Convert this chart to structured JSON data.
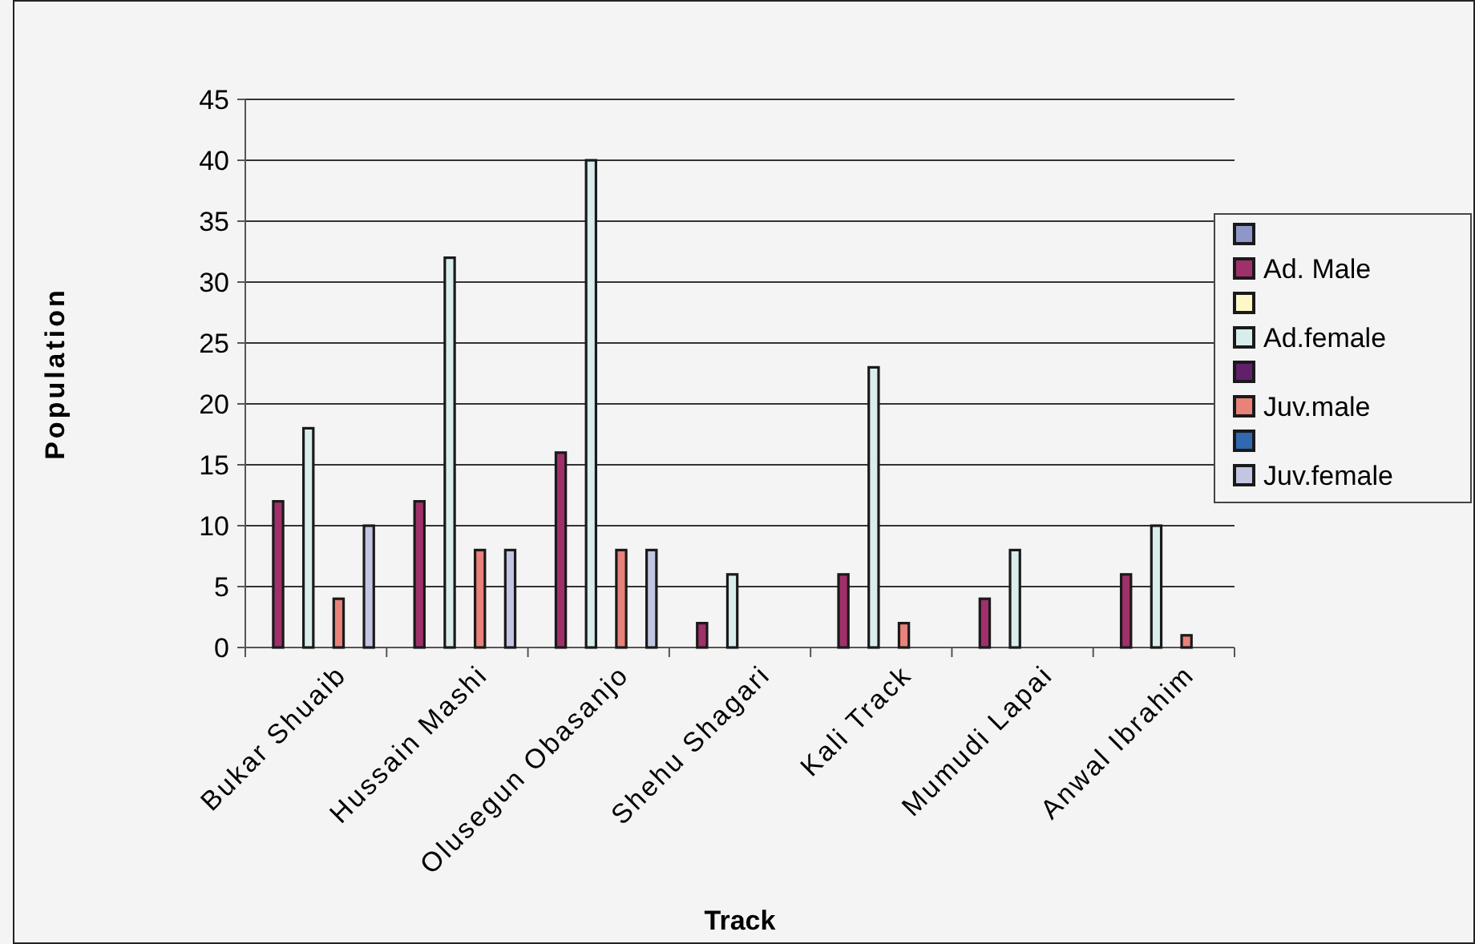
{
  "chart_data": {
    "type": "bar",
    "xlabel": "Track",
    "ylabel": "Population",
    "categories": [
      "Bukar Shuaib",
      "Hussain Mashi",
      "Olusegun Obasanjo",
      "Shehu Shagari",
      "Kali Track",
      "Mumudi Lapai",
      "Anwal Ibrahim"
    ],
    "series": [
      {
        "color": "#8e97c9",
        "values": [
          null,
          null,
          null,
          null,
          null,
          null,
          null
        ]
      },
      {
        "name": "Ad. Male",
        "color": "#a0306a",
        "values": [
          12,
          12,
          16,
          2,
          6,
          4,
          6
        ]
      },
      {
        "color": "#fdf8c8",
        "values": [
          null,
          null,
          null,
          null,
          null,
          null,
          null
        ]
      },
      {
        "name": "Ad.female",
        "color": "#d9eded",
        "values": [
          18,
          32,
          40,
          6,
          23,
          8,
          10
        ]
      },
      {
        "color": "#621f6a",
        "values": [
          null,
          null,
          null,
          null,
          null,
          null,
          null
        ]
      },
      {
        "name": "Juv.male",
        "color": "#e8827a",
        "values": [
          4,
          8,
          8,
          null,
          2,
          null,
          1
        ]
      },
      {
        "color": "#3069b0",
        "values": [
          null,
          null,
          null,
          null,
          null,
          null,
          null
        ]
      },
      {
        "name": "Juv.female",
        "color": "#c3c6e2",
        "values": [
          10,
          8,
          8,
          null,
          null,
          null,
          null
        ]
      }
    ],
    "ylim": [
      0,
      45
    ],
    "yticks": [
      0,
      5,
      10,
      15,
      20,
      25,
      30,
      35,
      40,
      45
    ],
    "grid": "y",
    "legend": "right"
  }
}
